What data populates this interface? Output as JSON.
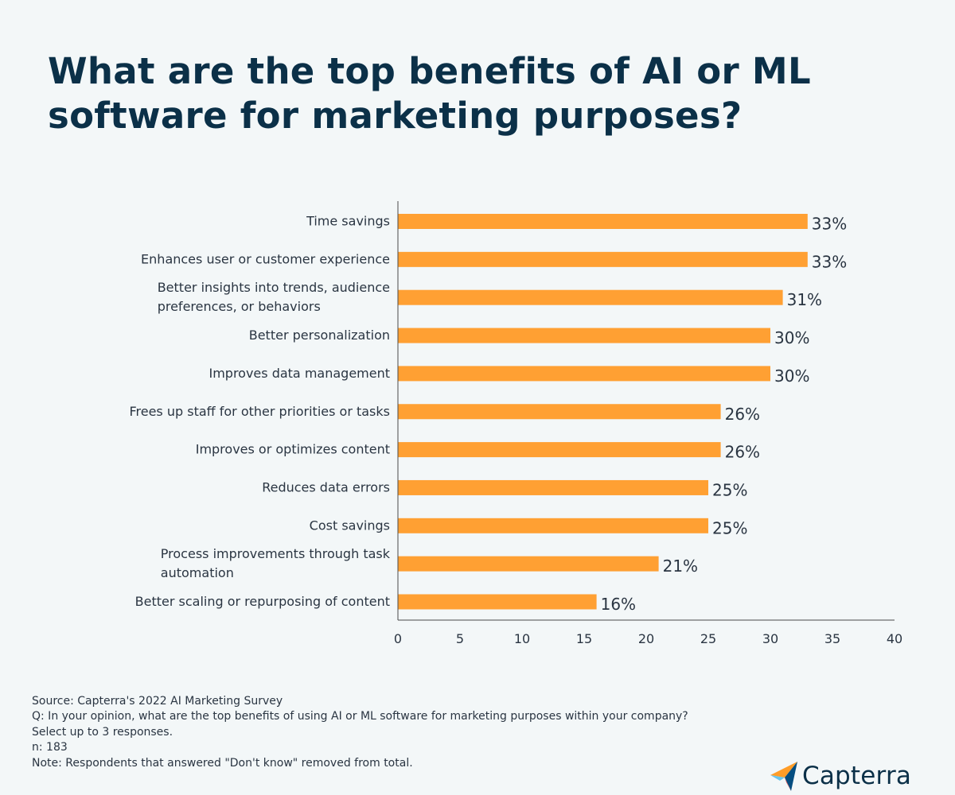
{
  "chart_data": {
    "type": "bar",
    "orientation": "horizontal",
    "title": "What are the top benefits of AI or ML software for marketing purposes?",
    "categories": [
      "Time savings",
      "Enhances user or customer experience",
      "Better insights into trends, audience preferences, or behaviors",
      "Better personalization",
      "Improves data management",
      "Frees up staff for other priorities or tasks",
      "Improves or optimizes content",
      "Reduces data errors",
      "Cost savings",
      "Process improvements through task automation",
      "Better scaling or repurposing of content"
    ],
    "values": [
      33,
      33,
      31,
      30,
      30,
      26,
      26,
      25,
      25,
      21,
      16
    ],
    "value_labels": [
      "33%",
      "33%",
      "31%",
      "30%",
      "30%",
      "26%",
      "26%",
      "25%",
      "25%",
      "21%",
      "16%"
    ],
    "xlim": [
      0,
      40
    ],
    "xticks": [
      0,
      5,
      10,
      15,
      20,
      25,
      30,
      35,
      40
    ],
    "bar_color": "#ffa033",
    "grid": false
  },
  "footer": {
    "source": "Source: Capterra's 2022 AI Marketing Survey",
    "question": "Q: In your opinion, what are the top benefits of using AI or ML software for marketing purposes within your company?",
    "instruction": "Select up to 3 responses.",
    "n": "n: 183",
    "note": "Note: Respondents that answered \"Don't know\" removed from total."
  },
  "brand": {
    "name": "Capterra",
    "icon": "capterra-logo-icon"
  }
}
